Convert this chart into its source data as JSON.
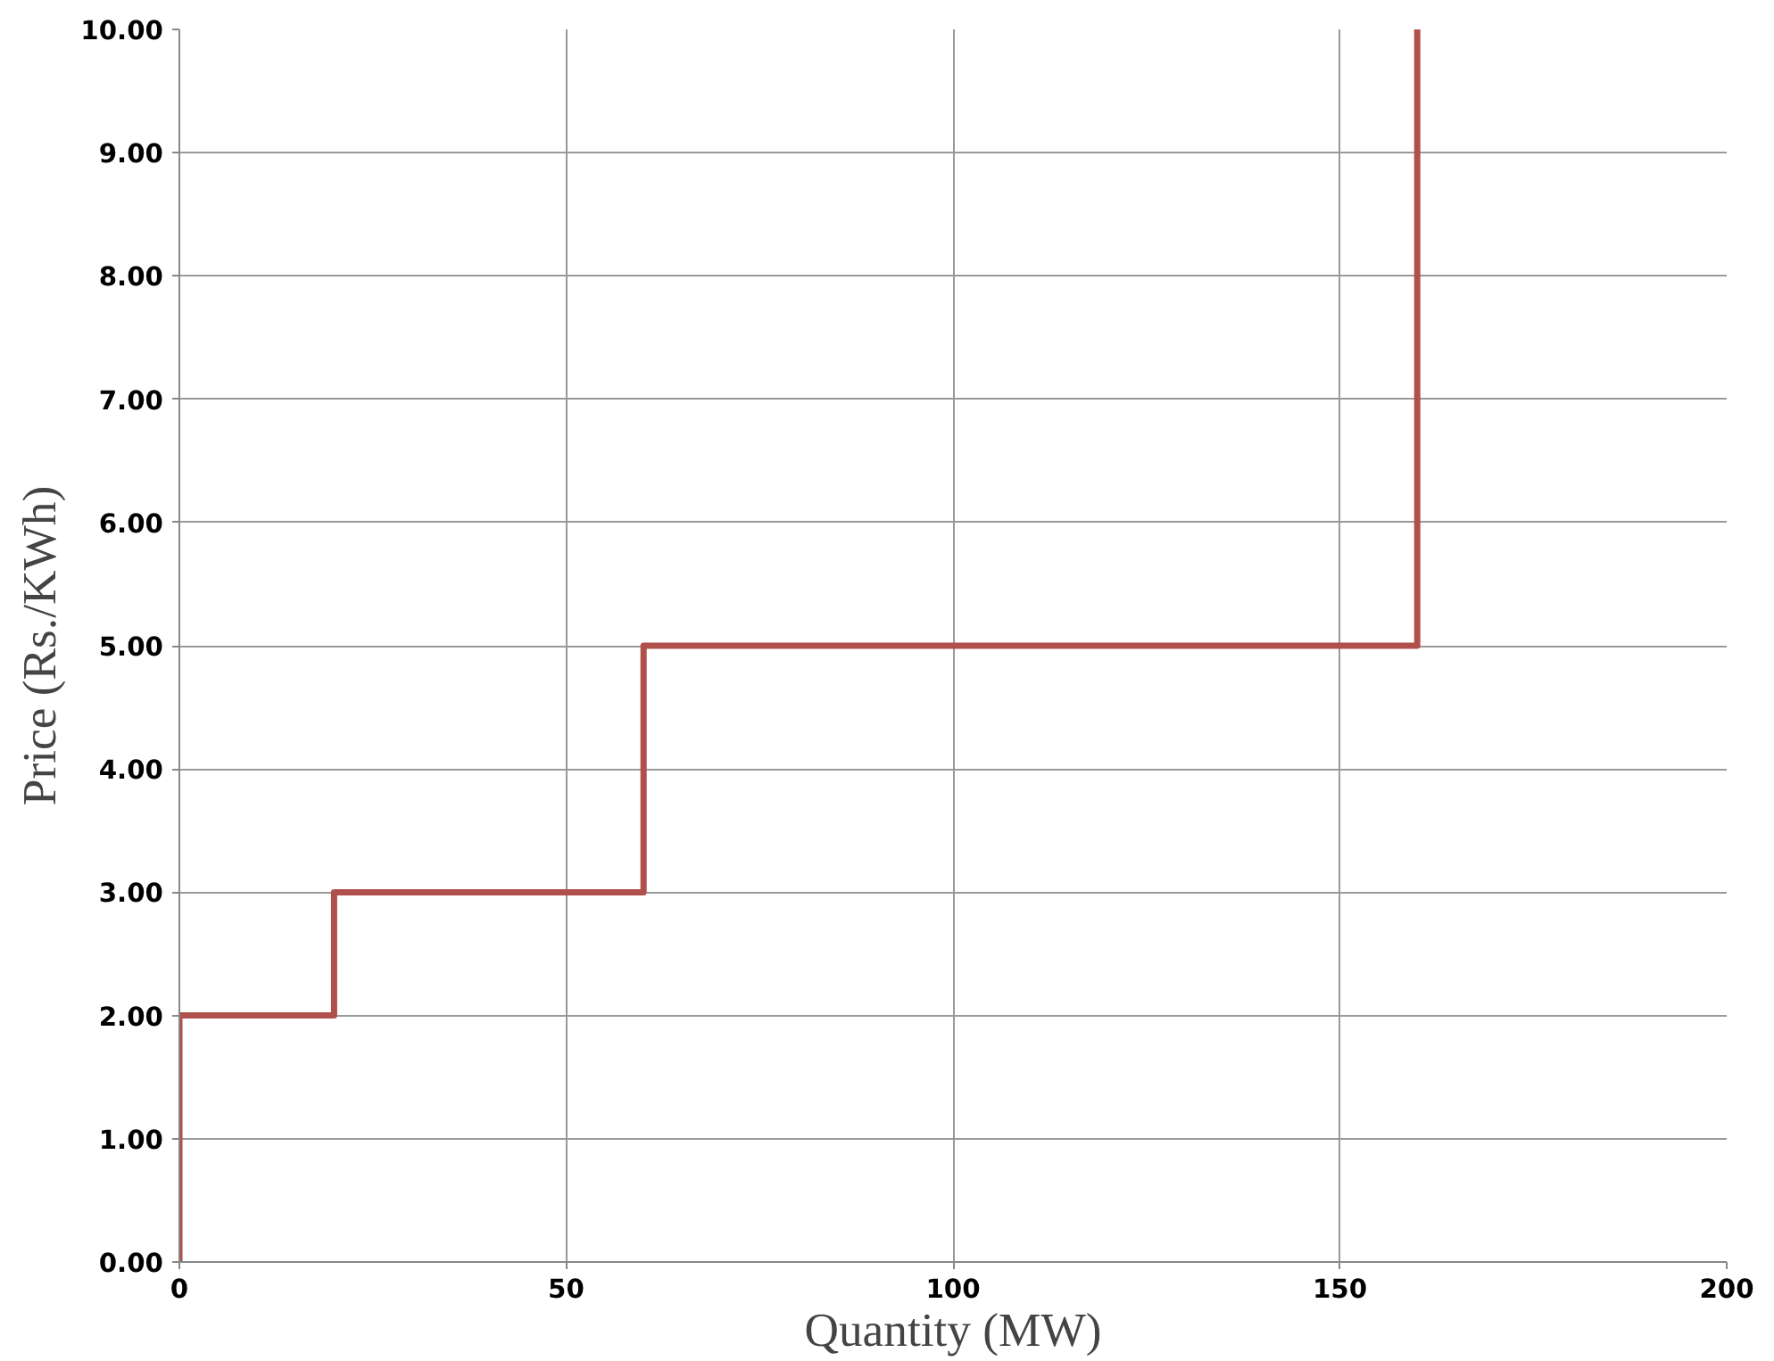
{
  "chart_data": {
    "type": "line",
    "xlabel": "Quantity (MW)",
    "ylabel": "Price (Rs./KWh)",
    "x": [
      0,
      0,
      20,
      20,
      60,
      60,
      160,
      160
    ],
    "series": [
      {
        "color": "#b0504d",
        "values": [
          0,
          2,
          2,
          3,
          3,
          5,
          5,
          10
        ]
      }
    ],
    "xlim": [
      0,
      200
    ],
    "xticks": [
      0,
      50,
      100,
      150,
      200
    ],
    "ylim": [
      0,
      10
    ],
    "yticks": [
      {
        "value": 0,
        "label": "0.00"
      },
      {
        "value": 1,
        "label": "1.00"
      },
      {
        "value": 2,
        "label": "2.00"
      },
      {
        "value": 3,
        "label": "3.00"
      },
      {
        "value": 4,
        "label": "4.00"
      },
      {
        "value": 5,
        "label": "5.00"
      },
      {
        "value": 6,
        "label": "6.00"
      },
      {
        "value": 7,
        "label": "7.00"
      },
      {
        "value": 8,
        "label": "8.00"
      },
      {
        "value": 9,
        "label": "9.00"
      },
      {
        "value": 10,
        "label": "10.00"
      }
    ],
    "grid": true,
    "line_style": "solid"
  }
}
